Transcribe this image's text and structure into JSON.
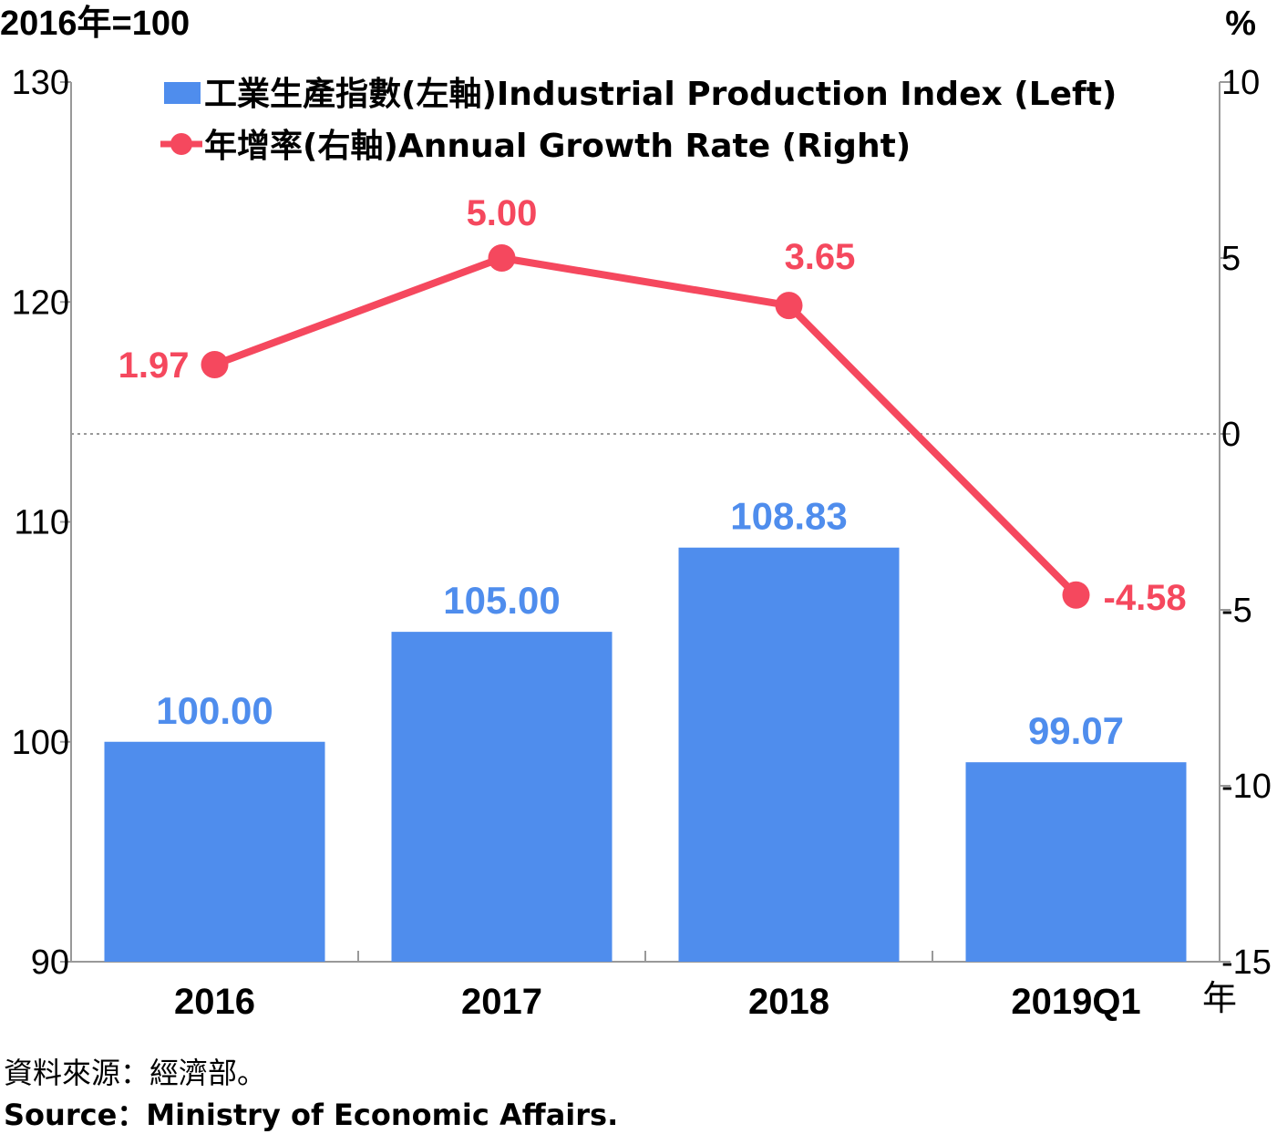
{
  "chart_data": {
    "type": "bar",
    "categories": [
      "2016",
      "2017",
      "2018",
      "2019Q1"
    ],
    "x_unit": "年",
    "left_axis": {
      "unit_label": "2016年=100",
      "range": [
        90,
        130
      ],
      "ticks": [
        90,
        100,
        110,
        120,
        130
      ]
    },
    "right_axis": {
      "unit_label": "%",
      "range": [
        -15,
        10
      ],
      "ticks": [
        -15,
        -10,
        -5,
        0,
        5,
        10
      ]
    },
    "series": [
      {
        "name": "工業生產指數(左軸)Industrial Production Index (Left)",
        "type": "bar",
        "axis": "left",
        "color": "#4f8ded",
        "values": [
          100.0,
          105.0,
          108.83,
          99.07
        ],
        "labels": [
          "100.00",
          "105.00",
          "108.83",
          "99.07"
        ]
      },
      {
        "name": "年增率(右軸)Annual Growth Rate (Right)",
        "type": "line",
        "axis": "right",
        "color": "#f5485e",
        "values": [
          1.97,
          5.0,
          3.65,
          -4.58
        ],
        "labels": [
          "1.97",
          "5.00",
          "3.65",
          "-4.58"
        ]
      }
    ],
    "zero_line": "dotted",
    "legend_position": "top-left"
  },
  "source": {
    "zh": "資料來源：經濟部。",
    "en": "Source：Ministry of Economic Affairs."
  }
}
